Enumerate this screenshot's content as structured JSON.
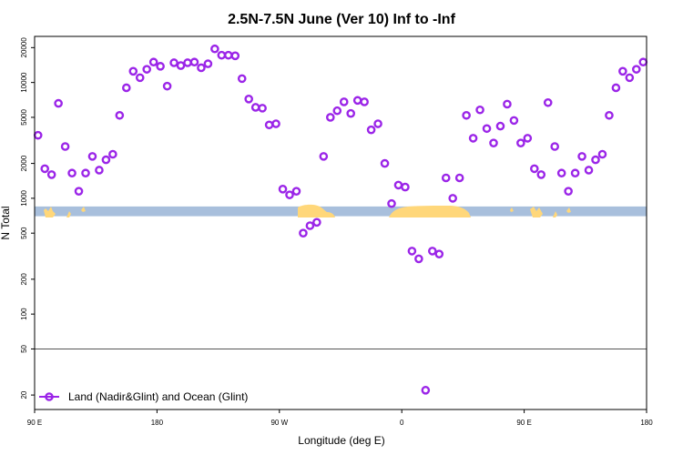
{
  "colors": {
    "series": "#9b25e8",
    "ocean_band": "#a8bfdc",
    "land": "#ffd77a",
    "reference_line": "#555555",
    "frame": "#000000"
  },
  "chart_data": {
    "type": "scatter",
    "title": "2.5N-7.5N June (Ver 10)   Inf to -Inf",
    "xlabel": "Longitude (deg E)",
    "ylabel": "N Total",
    "xlim": [
      90,
      540
    ],
    "y_scale": "log",
    "ylim": [
      15,
      25000
    ],
    "grid": false,
    "legend_position": "bottom-left",
    "x_ticks": [
      {
        "value": 90,
        "label": "90 E"
      },
      {
        "value": 180,
        "label": "180"
      },
      {
        "value": 270,
        "label": "90 W"
      },
      {
        "value": 360,
        "label": "0"
      },
      {
        "value": 450,
        "label": "90 E"
      },
      {
        "value": 540,
        "label": "180"
      }
    ],
    "y_ticks": [
      {
        "value": 20,
        "label": "20"
      },
      {
        "value": 50,
        "label": "50"
      },
      {
        "value": 100,
        "label": "100"
      },
      {
        "value": 200,
        "label": "200"
      },
      {
        "value": 500,
        "label": "500"
      },
      {
        "value": 1000,
        "label": "1000"
      },
      {
        "value": 2000,
        "label": "2000"
      },
      {
        "value": 5000,
        "label": "5000"
      },
      {
        "value": 10000,
        "label": "10000"
      },
      {
        "value": 20000,
        "label": "20000"
      }
    ],
    "reference_line_y": 50,
    "band_y_range": [
      700,
      850
    ],
    "series": [
      {
        "name": "Land (Nadir&Glint) and Ocean (Glint)",
        "marker": "open-circle",
        "points": [
          [
            92.5,
            3500
          ],
          [
            97.5,
            1800
          ],
          [
            102.5,
            1600
          ],
          [
            107.5,
            6600
          ],
          [
            112.5,
            2800
          ],
          [
            117.5,
            1650
          ],
          [
            122.5,
            1150
          ],
          [
            127.5,
            1650
          ],
          [
            132.5,
            2300
          ],
          [
            137.5,
            1750
          ],
          [
            142.5,
            2150
          ],
          [
            147.5,
            2400
          ],
          [
            152.5,
            5200
          ],
          [
            157.5,
            9000
          ],
          [
            162.5,
            12500
          ],
          [
            167.5,
            11000
          ],
          [
            172.5,
            13000
          ],
          [
            177.5,
            15000
          ],
          [
            182.5,
            13800
          ],
          [
            187.5,
            9300
          ],
          [
            192.5,
            14800
          ],
          [
            197.5,
            14000
          ],
          [
            202.5,
            14800
          ],
          [
            207.5,
            15000
          ],
          [
            212.5,
            13400
          ],
          [
            217.5,
            14500
          ],
          [
            222.5,
            19500
          ],
          [
            227.5,
            17200
          ],
          [
            232.5,
            17200
          ],
          [
            237.5,
            17000
          ],
          [
            242.5,
            10800
          ],
          [
            247.5,
            7200
          ],
          [
            252.5,
            6100
          ],
          [
            257.5,
            6000
          ],
          [
            262.5,
            4300
          ],
          [
            267.5,
            4400
          ],
          [
            272.5,
            1200
          ],
          [
            277.5,
            1070
          ],
          [
            282.5,
            1150
          ],
          [
            287.5,
            500
          ],
          [
            292.5,
            580
          ],
          [
            297.5,
            620
          ],
          [
            302.5,
            2300
          ],
          [
            307.5,
            5000
          ],
          [
            312.5,
            5700
          ],
          [
            317.5,
            6800
          ],
          [
            322.5,
            5400
          ],
          [
            327.5,
            7000
          ],
          [
            332.5,
            6800
          ],
          [
            337.5,
            3900
          ],
          [
            342.5,
            4400
          ],
          [
            347.5,
            2000
          ],
          [
            352.5,
            900
          ],
          [
            357.5,
            1300
          ],
          [
            362.5,
            1250
          ],
          [
            367.5,
            350
          ],
          [
            372.5,
            300
          ],
          [
            377.5,
            22
          ],
          [
            382.5,
            350
          ],
          [
            387.5,
            330
          ],
          [
            392.5,
            1500
          ],
          [
            397.5,
            1000
          ],
          [
            402.5,
            1500
          ],
          [
            407.5,
            5200
          ],
          [
            412.5,
            3300
          ],
          [
            417.5,
            5800
          ],
          [
            422.5,
            4000
          ],
          [
            427.5,
            3000
          ],
          [
            432.5,
            4200
          ],
          [
            437.5,
            6500
          ],
          [
            442.5,
            4700
          ],
          [
            447.5,
            3000
          ],
          [
            452.5,
            3300
          ],
          [
            457.5,
            1800
          ],
          [
            462.5,
            1600
          ],
          [
            467.5,
            6700
          ],
          [
            472.5,
            2800
          ],
          [
            477.5,
            1650
          ],
          [
            482.5,
            1150
          ],
          [
            487.5,
            1650
          ],
          [
            492.5,
            2300
          ],
          [
            497.5,
            1750
          ],
          [
            502.5,
            2150
          ],
          [
            507.5,
            2400
          ],
          [
            512.5,
            5200
          ],
          [
            517.5,
            9000
          ],
          [
            522.5,
            12500
          ],
          [
            527.5,
            11000
          ],
          [
            532.5,
            13000
          ],
          [
            537.5,
            15000
          ]
        ]
      }
    ]
  }
}
